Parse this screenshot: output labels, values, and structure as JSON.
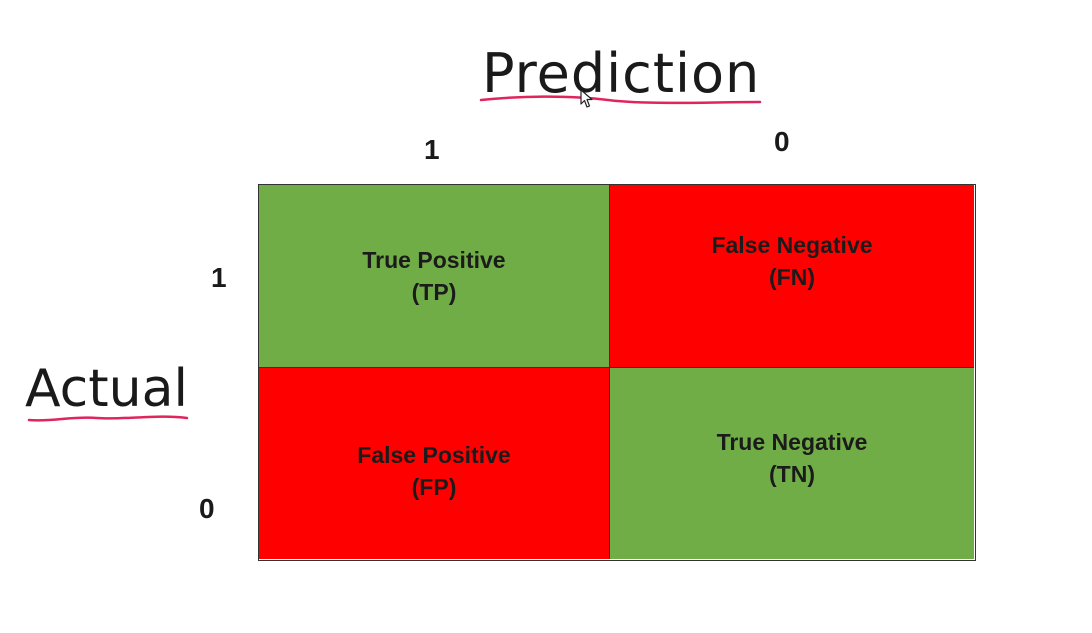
{
  "headings": {
    "prediction": "Prediction",
    "actual": "Actual"
  },
  "axis_labels": {
    "prediction_positive": "1",
    "prediction_negative": "0",
    "actual_positive": "1",
    "actual_negative": "0"
  },
  "matrix": {
    "tp": {
      "title": "True Positive",
      "abbr": "(TP)",
      "color": "#70ad47"
    },
    "fn": {
      "title": "False Negative",
      "abbr": "(FN)",
      "color": "#ff0000"
    },
    "fp": {
      "title": "False Positive",
      "abbr": "(FP)",
      "color": "#ff0000"
    },
    "tn": {
      "title": "True Negative",
      "abbr": "(TN)",
      "color": "#70ad47"
    }
  },
  "colors": {
    "annotation_underline": "#e0245e",
    "positive_cell": "#70ad47",
    "negative_cell": "#ff0000"
  },
  "icons": {
    "cursor": "mouse-pointer-icon"
  }
}
